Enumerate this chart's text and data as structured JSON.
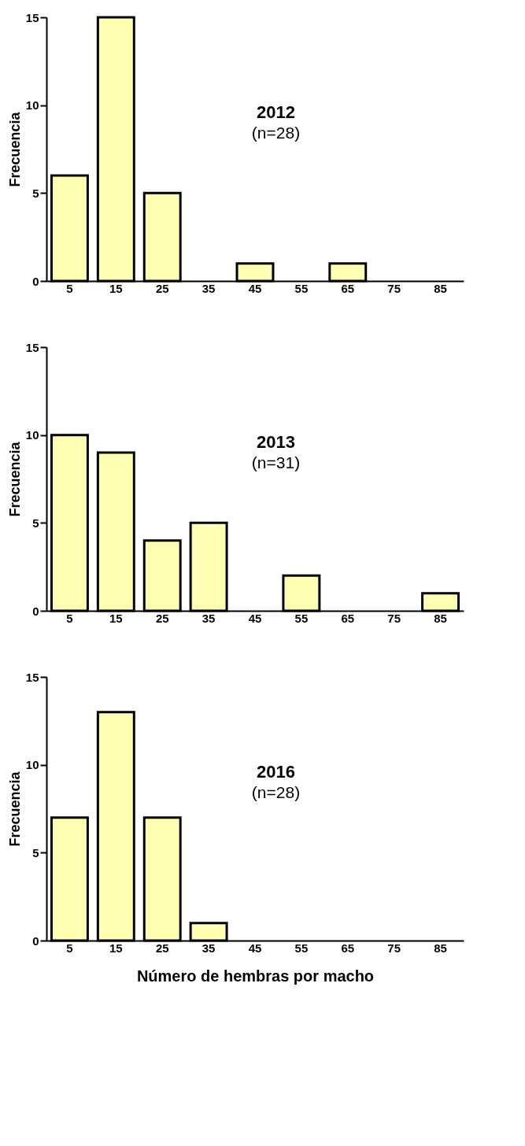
{
  "chart_data": [
    {
      "type": "bar",
      "categories": [
        "5",
        "15",
        "25",
        "35",
        "45",
        "55",
        "65",
        "75",
        "85"
      ],
      "values": [
        6,
        15,
        5,
        0,
        1,
        0,
        1,
        0,
        0
      ],
      "color": "#ffffb3",
      "ylabel": "Frecuencia",
      "ylim": [
        0,
        15
      ],
      "yticks": [
        0,
        5,
        10,
        15
      ],
      "annotations": [
        "2012",
        "(n=28)"
      ]
    },
    {
      "type": "bar",
      "categories": [
        "5",
        "15",
        "25",
        "35",
        "45",
        "55",
        "65",
        "75",
        "85"
      ],
      "values": [
        10,
        9,
        4,
        5,
        0,
        2,
        0,
        0,
        1
      ],
      "color": "#ffffb3",
      "ylabel": "Frecuencia",
      "ylim": [
        0,
        15
      ],
      "yticks": [
        0,
        5,
        10,
        15
      ],
      "annotations": [
        "2013",
        "(n=31)"
      ]
    },
    {
      "type": "bar",
      "categories": [
        "5",
        "15",
        "25",
        "35",
        "45",
        "55",
        "65",
        "75",
        "85"
      ],
      "values": [
        7,
        13,
        7,
        1,
        0,
        0,
        0,
        0,
        0
      ],
      "color": "#ffffb3",
      "ylabel": "Frecuencia",
      "xlabel": "Número de hembras por macho",
      "ylim": [
        0,
        15
      ],
      "yticks": [
        0,
        5,
        10,
        15
      ],
      "annotations": [
        "2016",
        "(n=28)"
      ]
    }
  ]
}
